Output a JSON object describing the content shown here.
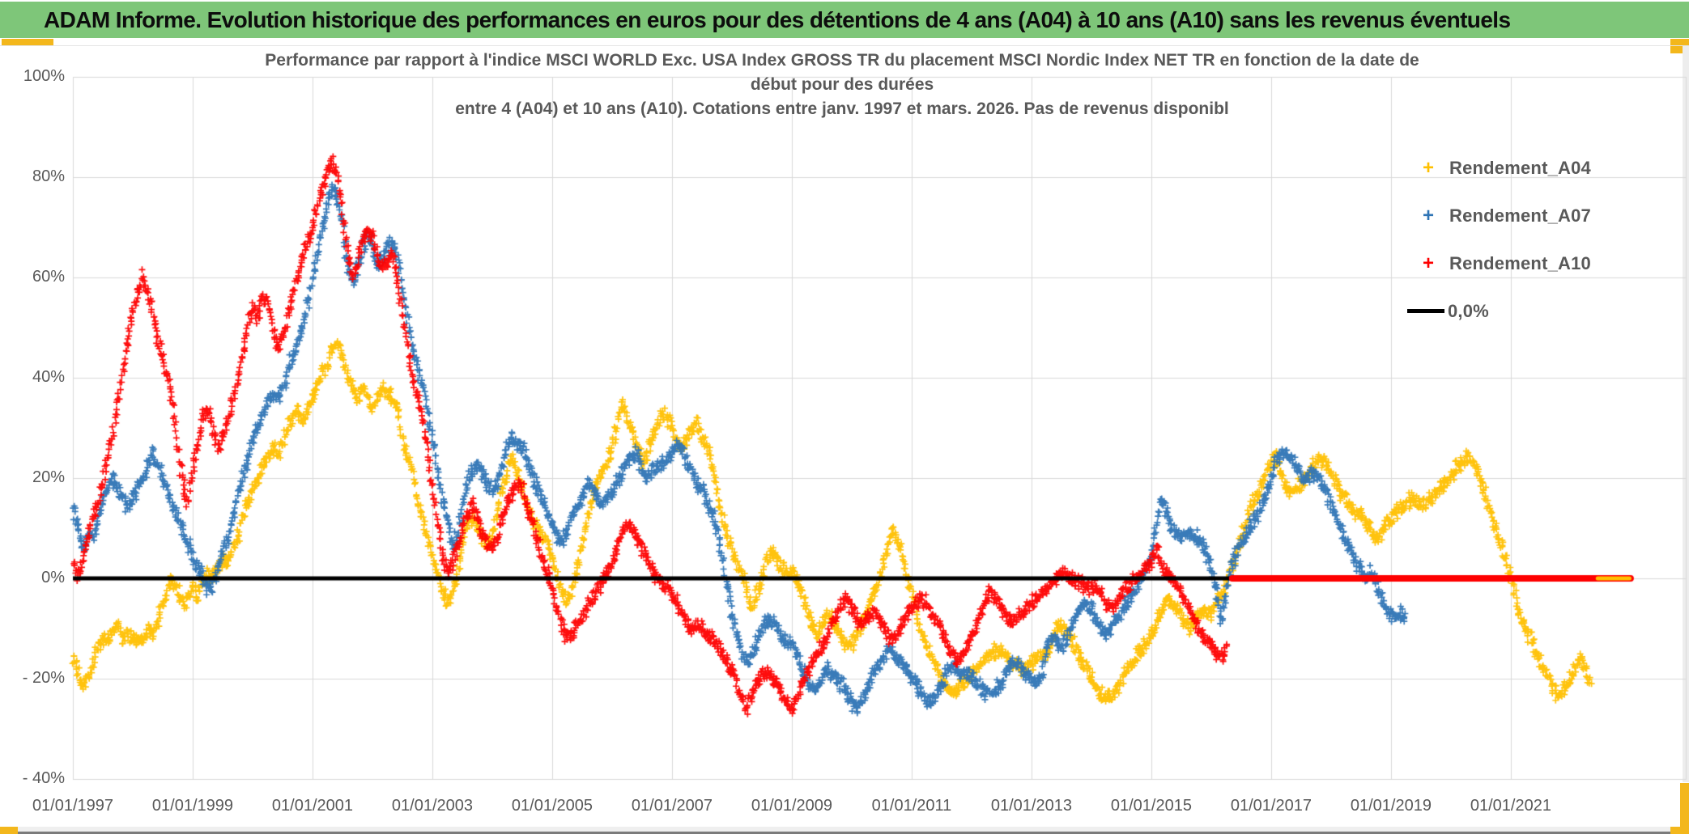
{
  "header": {
    "title": "ADAM Informe. Evolution historique des performances en euros pour des détentions de 4 ans (A04) à 10 ans (A10) sans les revenus éventuels"
  },
  "colors": {
    "header_green": "#7ec679",
    "accent_yellow": "#f3b71c",
    "series_a04": "#FFC000",
    "series_a07": "#2E74B5",
    "series_a10": "#FE0000",
    "baseline_black": "#000000",
    "gridline": "#d9d9d9",
    "axis_text": "#595959"
  },
  "chart_data": {
    "type": "scatter",
    "title_lines": [
      "Performance par rapport à l'indice MSCI WORLD Exc. USA Index GROSS TR  du placement MSCI Nordic Index NET TR en fonction de la date de",
      "début pour des durées",
      "entre 4 (A04) et 10 ans (A10). Cotations entre janv. 1997 et mars. 2026. Pas de revenus disponibl"
    ],
    "x_axis": {
      "tick_labels": [
        "01/01/1997",
        "01/01/1999",
        "01/01/2001",
        "01/01/2003",
        "01/01/2005",
        "01/01/2007",
        "01/01/2009",
        "01/01/2011",
        "01/01/2013",
        "01/01/2015",
        "01/01/2017",
        "01/01/2019",
        "01/01/2021"
      ],
      "tick_years": [
        1997,
        1999,
        2001,
        2003,
        2005,
        2007,
        2009,
        2011,
        2013,
        2015,
        2017,
        2019,
        2021
      ],
      "min_year": 1997.0,
      "max_year": 2023.92,
      "grid": true
    },
    "y_axis": {
      "ticks": [
        {
          "label": "100%",
          "value": 100
        },
        {
          "label": "80%",
          "value": 80
        },
        {
          "label": "60%",
          "value": 60
        },
        {
          "label": "40%",
          "value": 40
        },
        {
          "label": "20%",
          "value": 20
        },
        {
          "label": "0%",
          "value": 0
        },
        {
          "label": "- 20%",
          "value": -20
        },
        {
          "label": "- 40%",
          "value": -40
        }
      ],
      "min": -40,
      "max": 100,
      "grid": true
    },
    "legend": [
      {
        "label": "Rendement_A04",
        "color": "#FFC000",
        "marker": "plus"
      },
      {
        "label": "Rendement_A07",
        "color": "#2E74B5",
        "marker": "plus"
      },
      {
        "label": "Rendement_A10",
        "color": "#FE0000",
        "marker": "plus"
      },
      {
        "label": "0,0%",
        "color": "#000000",
        "marker": "line"
      }
    ],
    "series": [
      {
        "name": "Rendement_A04",
        "color": "#FFC000",
        "start_year": 1997.0,
        "points_per_year": 12,
        "values": [
          -15,
          -19,
          -22,
          -20,
          -17,
          -14,
          -12,
          -13,
          -11,
          -9,
          -12,
          -11,
          -12,
          -12,
          -12,
          -10,
          -11,
          -9,
          -5,
          -2,
          0,
          -2,
          -5,
          -4,
          -2,
          -4,
          -1,
          1,
          0,
          2,
          4,
          3,
          6,
          8,
          12,
          15,
          17,
          19,
          22,
          24,
          26,
          25,
          27,
          30,
          32,
          33,
          31,
          34,
          36,
          38,
          41,
          43,
          46,
          47,
          44,
          41,
          38,
          36,
          38,
          36,
          34,
          36,
          38,
          37,
          36,
          34,
          28,
          24,
          22,
          15,
          12,
          8,
          4,
          1,
          -2,
          -5,
          -3,
          1,
          7,
          11,
          12,
          10,
          8,
          6,
          9,
          13,
          18,
          21,
          24,
          21,
          18,
          15,
          12,
          10,
          9,
          7,
          4,
          1,
          -3,
          -5,
          -2,
          2,
          7,
          12,
          16,
          19,
          21,
          23,
          26,
          31,
          36,
          32,
          29,
          27,
          23,
          25,
          28,
          30,
          33,
          32,
          30,
          27,
          26,
          28,
          30,
          31,
          28,
          26,
          23,
          17,
          12,
          9,
          6,
          3,
          1,
          -3,
          -6,
          -3,
          0,
          4,
          5,
          4,
          2,
          1,
          2,
          0,
          -3,
          -6,
          -9,
          -11,
          -10,
          -7,
          -8,
          -10,
          -12,
          -13,
          -13,
          -11,
          -9,
          -7,
          -4,
          -2,
          1,
          6,
          10,
          8,
          5,
          1,
          -3,
          -7,
          -11,
          -14,
          -16,
          -18,
          -20,
          -22,
          -23,
          -22,
          -21,
          -20,
          -19,
          -18,
          -17,
          -16,
          -15,
          -14,
          -15,
          -16,
          -17,
          -17,
          -18,
          -18,
          -17,
          -16,
          -15,
          -16,
          -13,
          -10,
          -9,
          -11,
          -12,
          -14,
          -16,
          -18,
          -20,
          -22,
          -23,
          -24,
          -24,
          -22,
          -20,
          -18,
          -17,
          -15,
          -14,
          -13,
          -11,
          -9,
          -7,
          -4,
          -5,
          -6,
          -8,
          -9,
          -10,
          -8,
          -7,
          -7,
          -7,
          -5,
          -3,
          -1,
          2,
          5,
          8,
          11,
          14,
          16,
          18,
          21,
          23,
          24,
          21,
          18,
          17,
          18,
          19,
          20,
          22,
          23,
          24,
          23,
          21,
          19,
          17,
          16,
          14,
          13,
          13,
          11,
          10,
          8,
          9,
          11,
          12,
          13,
          14,
          15,
          16,
          16,
          15,
          15,
          16,
          17,
          18,
          19,
          20,
          22,
          23,
          24,
          24,
          22,
          19,
          16,
          13,
          10,
          7,
          3,
          0,
          -4,
          -8,
          -10,
          -12,
          -15,
          -17,
          -19,
          -21,
          -23,
          -23,
          -22,
          -20,
          -18,
          -16,
          -18,
          -21
        ]
      },
      {
        "name": "Rendement_A07",
        "color": "#2E74B5",
        "start_year": 1997.0,
        "points_per_year": 12,
        "values": [
          15,
          10,
          6,
          8,
          8,
          12,
          15,
          18,
          20,
          18,
          16,
          14,
          16,
          18,
          20,
          22,
          25,
          23,
          20,
          17,
          14,
          12,
          10,
          7,
          4,
          2,
          0,
          -2,
          -1,
          2,
          5,
          8,
          12,
          16,
          20,
          24,
          28,
          30,
          33,
          35,
          37,
          36,
          38,
          41,
          44,
          47,
          50,
          55,
          60,
          65,
          70,
          74,
          78,
          76,
          70,
          62,
          58,
          62,
          66,
          69,
          66,
          62,
          64,
          66,
          67,
          64,
          58,
          52,
          46,
          42,
          38,
          33,
          28,
          22,
          16,
          12,
          6,
          9,
          14,
          19,
          22,
          23,
          21,
          19,
          17,
          19,
          23,
          26,
          28,
          27,
          26,
          24,
          21,
          18,
          16,
          13,
          11,
          8,
          7,
          9,
          12,
          14,
          16,
          19,
          18,
          16,
          15,
          16,
          17,
          19,
          21,
          23,
          24,
          25,
          22,
          20,
          21,
          22,
          23,
          24,
          25,
          27,
          26,
          23,
          21,
          19,
          18,
          15,
          13,
          10,
          5,
          -2,
          -7,
          -11,
          -15,
          -17,
          -15,
          -13,
          -10,
          -8,
          -9,
          -10,
          -12,
          -13,
          -13,
          -15,
          -18,
          -20,
          -22,
          -22,
          -20,
          -18,
          -19,
          -20,
          -21,
          -23,
          -25,
          -26,
          -24,
          -22,
          -20,
          -18,
          -17,
          -15,
          -14,
          -16,
          -17,
          -18,
          -20,
          -21,
          -23,
          -25,
          -24,
          -23,
          -21,
          -19,
          -17,
          -18,
          -19,
          -19,
          -20,
          -21,
          -22,
          -23,
          -23,
          -22,
          -21,
          -19,
          -17,
          -17,
          -18,
          -19,
          -20,
          -21,
          -20,
          -14,
          -12,
          -13,
          -14,
          -12,
          -9,
          -8,
          -6,
          -5,
          -6,
          -8,
          -10,
          -11,
          -10,
          -8,
          -7,
          -5,
          -4,
          -2,
          0,
          2,
          5,
          10,
          16,
          13,
          10,
          9,
          8,
          9,
          9,
          8,
          7,
          5,
          2,
          -3,
          -8,
          -4,
          2,
          5,
          7,
          9,
          11,
          12,
          14,
          17,
          20,
          23,
          25,
          25,
          24,
          23,
          21,
          19,
          21,
          21,
          19,
          17,
          15,
          12,
          10,
          7,
          5,
          3,
          2,
          0,
          1,
          -1,
          -4,
          -6,
          -7,
          -8,
          -7,
          -8
        ]
      },
      {
        "name": "Rendement_A10",
        "color": "#FE0000",
        "start_year": 1997.0,
        "points_per_year": 12,
        "values": [
          3,
          0,
          4,
          8,
          12,
          15,
          19,
          24,
          29,
          35,
          41,
          48,
          53,
          57,
          60,
          57,
          53,
          48,
          44,
          40,
          34,
          26,
          19,
          15,
          22,
          27,
          32,
          34,
          30,
          26,
          28,
          31,
          35,
          40,
          45,
          50,
          54,
          52,
          57,
          55,
          50,
          46,
          48,
          52,
          56,
          60,
          64,
          67,
          70,
          74,
          78,
          81,
          83,
          80,
          73,
          65,
          60,
          63,
          67,
          70,
          68,
          64,
          61,
          63,
          65,
          60,
          53,
          46,
          40,
          36,
          32,
          26,
          19,
          12,
          5,
          1,
          3,
          6,
          9,
          13,
          15,
          12,
          9,
          7,
          6,
          8,
          12,
          15,
          17,
          19,
          18,
          14,
          11,
          8,
          4,
          1,
          -2,
          -6,
          -9,
          -12,
          -11,
          -9,
          -8,
          -6,
          -4,
          -2,
          -1,
          1,
          3,
          6,
          9,
          11,
          10,
          8,
          6,
          4,
          2,
          0,
          -1,
          -2,
          -3,
          -5,
          -7,
          -9,
          -10,
          -9,
          -10,
          -11,
          -12,
          -13,
          -15,
          -17,
          -18,
          -21,
          -24,
          -26,
          -23,
          -21,
          -19,
          -19,
          -20,
          -21,
          -23,
          -25,
          -26,
          -24,
          -21,
          -19,
          -17,
          -15,
          -14,
          -12,
          -9,
          -7,
          -5,
          -4,
          -6,
          -8,
          -9,
          -8,
          -7,
          -7,
          -9,
          -11,
          -12,
          -11,
          -9,
          -7,
          -6,
          -5,
          -4,
          -5,
          -7,
          -8,
          -10,
          -13,
          -15,
          -17,
          -16,
          -14,
          -12,
          -9,
          -6,
          -4,
          -3,
          -4,
          -6,
          -8,
          -9,
          -8,
          -7,
          -6,
          -5,
          -4,
          -3,
          -2,
          -1,
          0,
          1,
          1,
          0,
          -1,
          -1,
          -2,
          -2,
          -2,
          -3,
          -5,
          -6,
          -5,
          -3,
          -2,
          -1,
          0,
          1,
          2,
          3,
          6,
          3,
          1,
          0,
          -1,
          -3,
          -5,
          -7,
          -9,
          -11,
          -12,
          -13,
          -15,
          -16,
          -14
        ]
      }
    ],
    "baseline": {
      "label": "0,0%",
      "color": "#000000",
      "y": 0,
      "x_start": 1997.0,
      "x_end": 2023.0
    },
    "flat_zero_tails": [
      {
        "series": "Rendement_A10",
        "color": "#FE0000",
        "x_start": 2016.35,
        "x_end": 2023.0
      },
      {
        "series": "Rendement_A04",
        "color": "#FFC000",
        "x_start": 2022.45,
        "x_end": 2022.98
      }
    ],
    "legend_position": "right",
    "grid_on": true
  }
}
